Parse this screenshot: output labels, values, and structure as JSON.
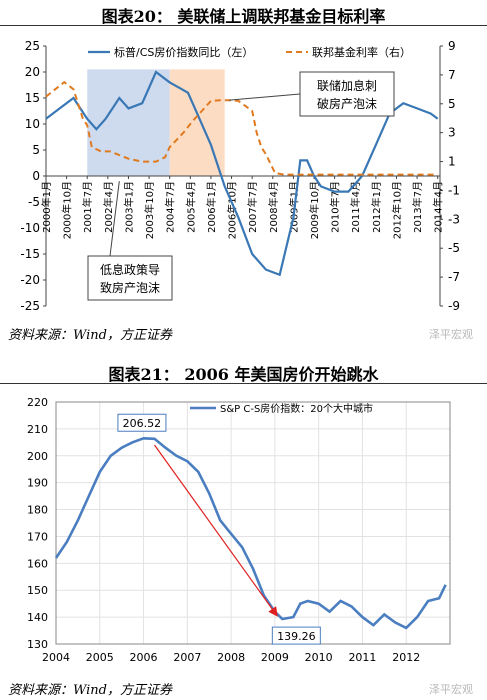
{
  "figure20": {
    "title": "图表20：  美联储上调联邦基金目标利率",
    "source": "资料来源：Wind，方正证券",
    "watermark": "泽平宏观",
    "chart_data": {
      "type": "line",
      "x_ticks": [
        "2000年1月",
        "2000年10月",
        "2001年7月",
        "2002年4月",
        "2003年1月",
        "2003年10月",
        "2004年7月",
        "2005年4月",
        "2006年1月",
        "2006年10月",
        "2007年7月",
        "2008年4月",
        "2009年1月",
        "2009年10月",
        "2010年7月",
        "2011年4月",
        "2012年1月",
        "2012年10月",
        "2013年7月",
        "2014年4月"
      ],
      "y_left_ticks": [
        "25",
        "20",
        "15",
        "10",
        "5",
        "0",
        "-5",
        "-10",
        "-15",
        "-20",
        "-25"
      ],
      "y_right_ticks": [
        "9",
        "7",
        "5",
        "3",
        "1",
        "-1",
        "-3",
        "-5",
        "-7",
        "-9"
      ],
      "ylim_left": [
        -25,
        25
      ],
      "ylim_right": [
        -9,
        9
      ],
      "legend": [
        "标普/CS房价指数同比（左）",
        "联邦基金利率（右）"
      ],
      "annotations": {
        "low_rate": [
          "低息政策导",
          "致房产泡沫"
        ],
        "hike": [
          "联储加息刺",
          "破房产泡沫"
        ]
      },
      "shaded_regions": [
        {
          "from_month": 18,
          "to_month": 54,
          "color": "#c5d5ec"
        },
        {
          "from_month": 54,
          "to_month": 78,
          "color": "#fbd6b8"
        }
      ],
      "series": [
        {
          "name": "标普/CS房价指数同比（左）",
          "axis": "left",
          "color": "#3a78b5",
          "x_month": [
            0,
            6,
            12,
            18,
            22,
            26,
            32,
            36,
            42,
            48,
            54,
            58,
            62,
            66,
            72,
            78,
            84,
            90,
            96,
            102,
            108,
            111,
            114,
            117,
            120,
            126,
            132,
            138,
            144,
            150,
            156,
            162,
            168,
            171
          ],
          "values": [
            11,
            13,
            15,
            11,
            9,
            11,
            15,
            13,
            14,
            20,
            18,
            17,
            16,
            12,
            6,
            -2,
            -8,
            -15,
            -18,
            -19,
            -8,
            3,
            3,
            0,
            -2,
            -3,
            -3,
            0,
            6,
            12,
            14,
            13,
            12,
            11
          ]
        },
        {
          "name": "联邦基金利率（右）",
          "axis": "right",
          "color": "#e07a1f",
          "x_month": [
            0,
            4,
            8,
            12,
            16,
            18,
            20,
            24,
            28,
            36,
            42,
            48,
            52,
            54,
            57,
            60,
            64,
            68,
            72,
            76,
            80,
            84,
            90,
            92,
            94,
            96,
            100,
            104,
            108,
            120,
            140,
            160,
            171
          ],
          "values": [
            5.5,
            6,
            6.5,
            6,
            4,
            3.5,
            2,
            1.7,
            1.7,
            1.2,
            1,
            1,
            1.3,
            2,
            2.5,
            3,
            3.8,
            4.5,
            5.2,
            5.25,
            5.25,
            5.2,
            4.5,
            3,
            2,
            1.5,
            0.2,
            0.1,
            0.1,
            0.1,
            0.1,
            0.1,
            0.1
          ]
        }
      ]
    }
  },
  "figure21": {
    "title": "图表21：  2006 年美国房价开始跳水",
    "source": "资料来源：Wind，方正证券",
    "watermark": "泽平宏观",
    "chart_data": {
      "type": "line",
      "x_ticks": [
        "2004",
        "2005",
        "2006",
        "2007",
        "2008",
        "2009",
        "2010",
        "2011",
        "2012"
      ],
      "y_ticks": [
        "220",
        "210",
        "200",
        "190",
        "180",
        "170",
        "160",
        "150",
        "140",
        "130"
      ],
      "ylim": [
        130,
        220
      ],
      "legend": [
        "S&P C-S房价指数：20个大中城市"
      ],
      "annotations": {
        "peak": "206.52",
        "trough": "139.26"
      },
      "series": [
        {
          "name": "S&P C-S房价指数：20个大中城市",
          "color": "#4a7ec0",
          "x_year": [
            2004,
            2004.25,
            2004.5,
            2004.75,
            2005,
            2005.25,
            2005.5,
            2005.75,
            2006,
            2006.25,
            2006.5,
            2006.75,
            2007,
            2007.25,
            2007.5,
            2007.75,
            2008,
            2008.25,
            2008.5,
            2008.75,
            2009,
            2009.17,
            2009.42,
            2009.58,
            2009.75,
            2010,
            2010.25,
            2010.5,
            2010.75,
            2011,
            2011.25,
            2011.5,
            2011.75,
            2012,
            2012.25,
            2012.5,
            2012.75,
            2012.9
          ],
          "values": [
            162,
            168,
            176,
            185,
            194,
            200,
            203,
            205,
            206.5,
            206.3,
            203,
            200,
            198,
            194,
            186,
            176,
            171,
            166,
            158,
            148,
            142,
            139.3,
            140,
            145,
            146,
            145,
            142,
            146,
            144,
            140,
            137,
            141,
            138,
            136,
            140,
            146,
            147,
            152
          ]
        }
      ]
    }
  }
}
